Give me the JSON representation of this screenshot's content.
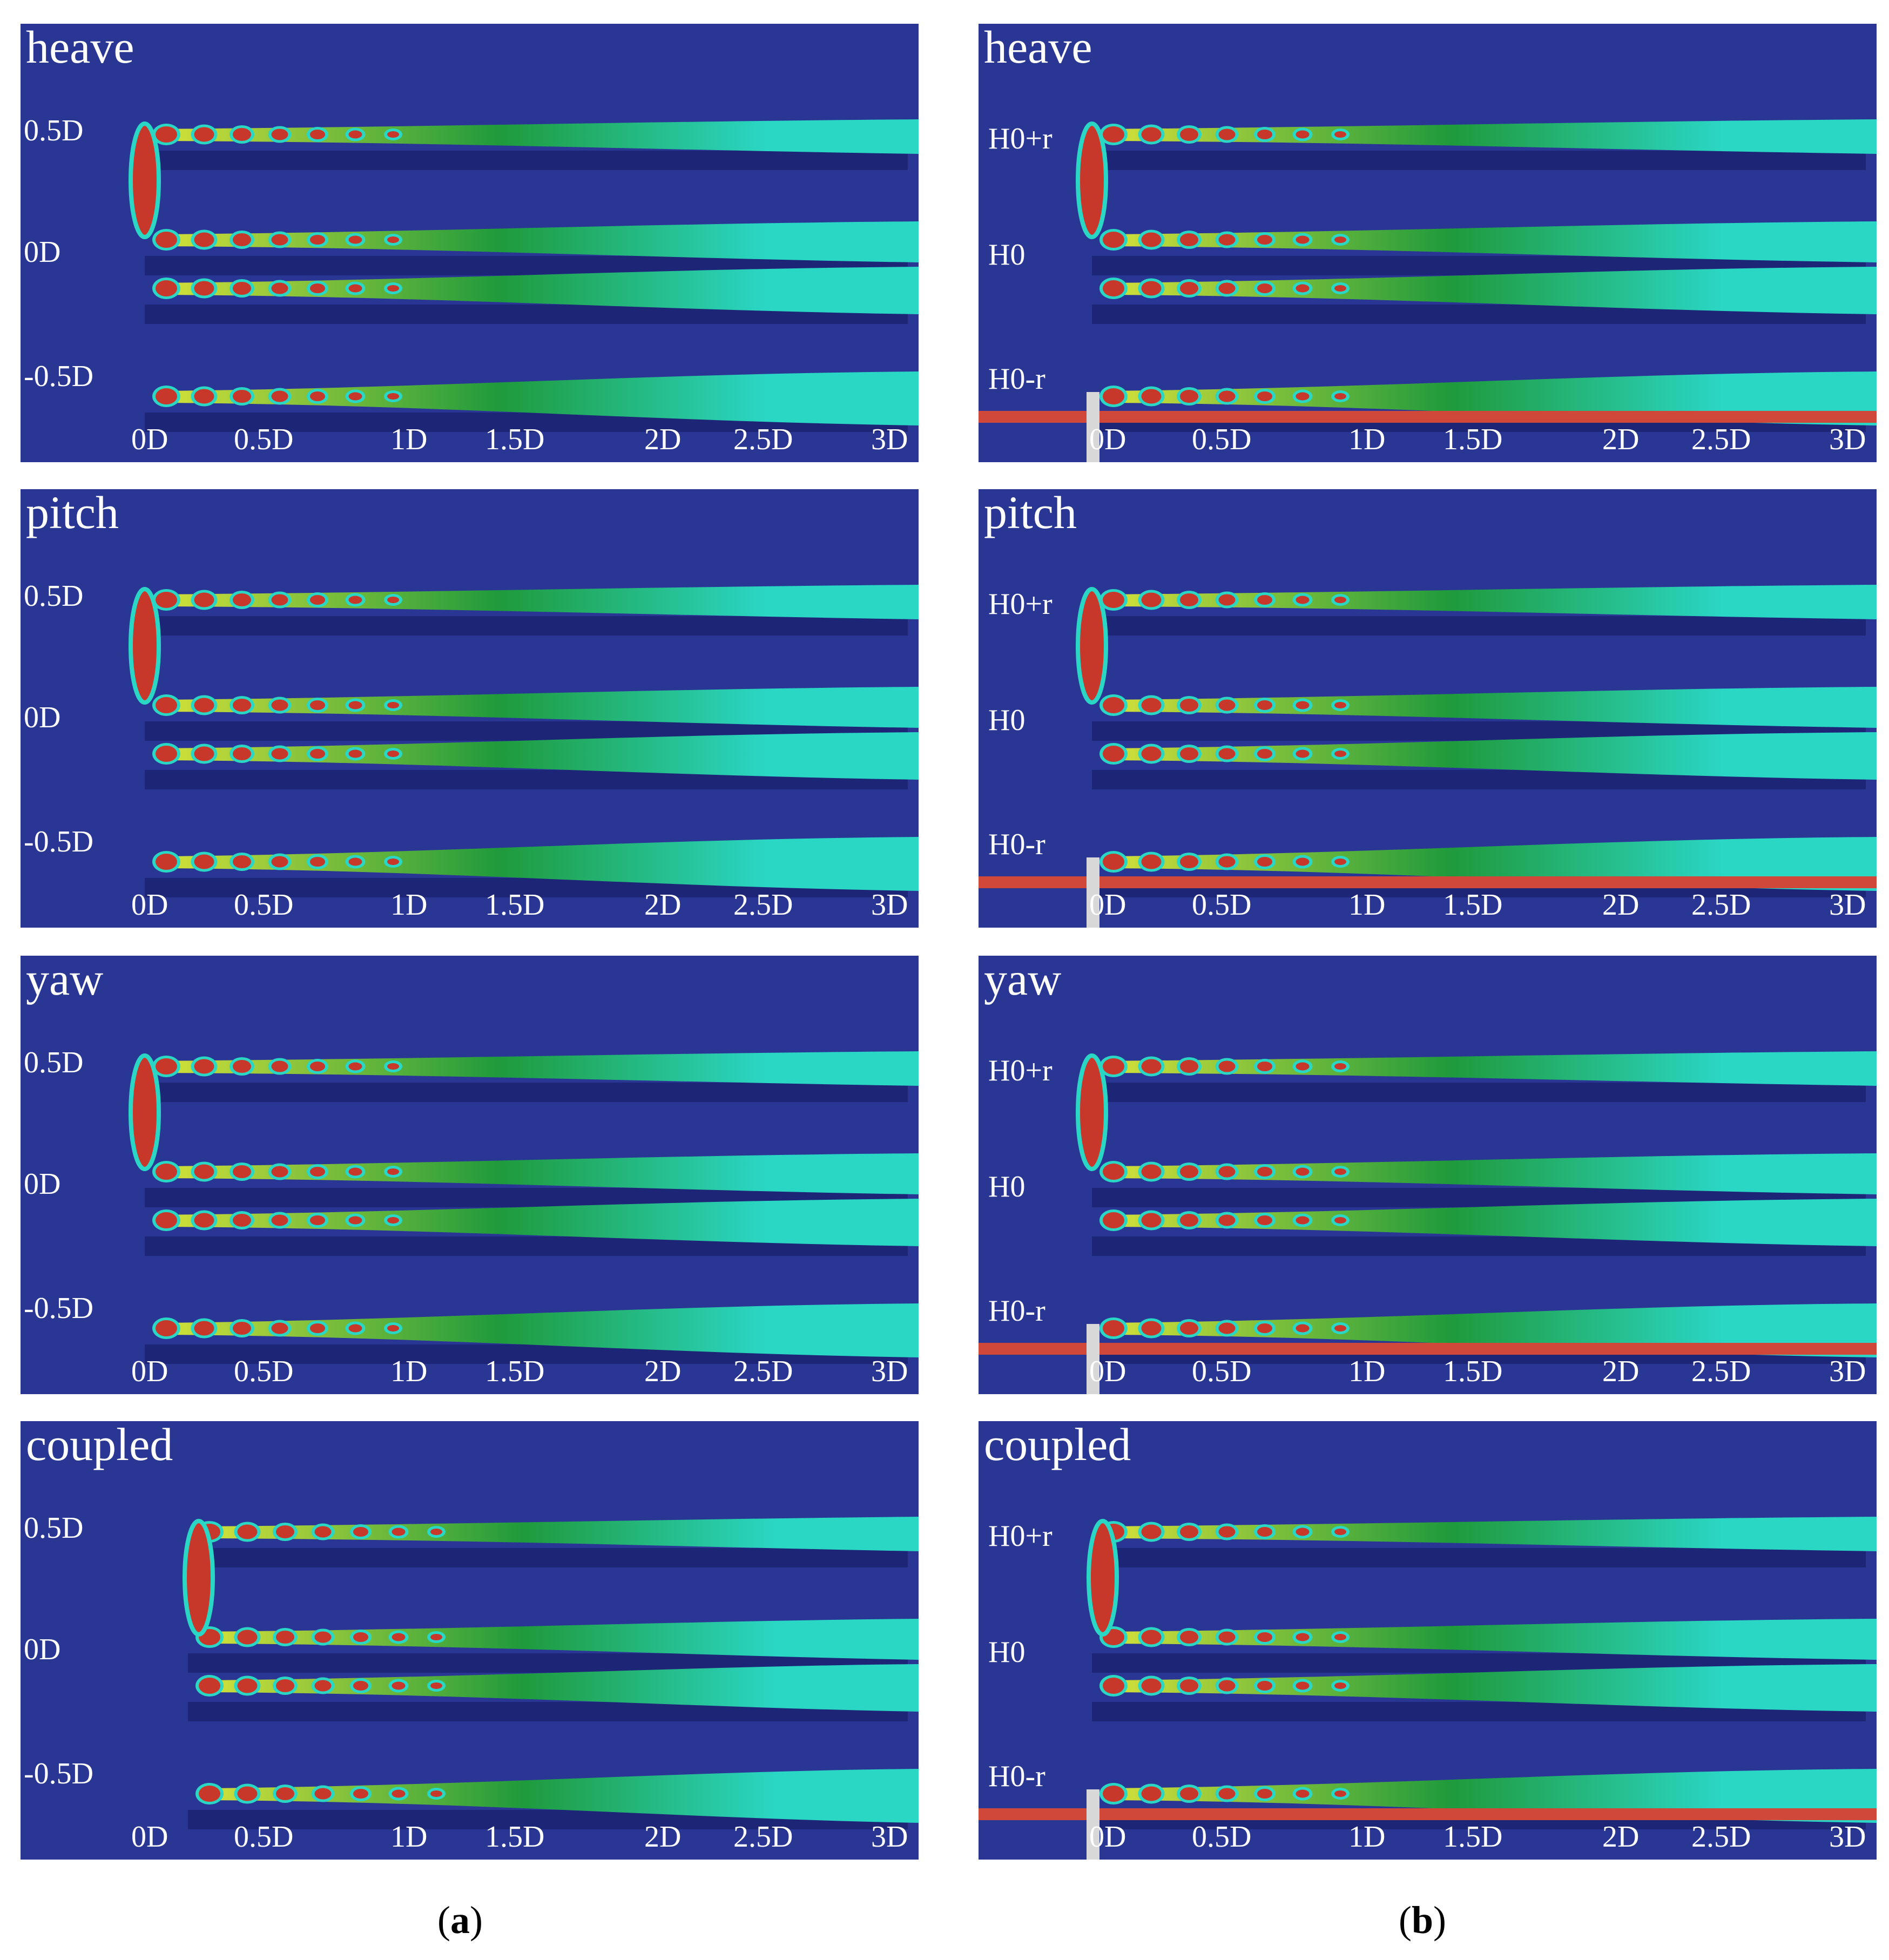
{
  "colors": {
    "background": "#2a3694",
    "deep": "#121a5c",
    "teal": "#2ad6c4",
    "green": "#1f9a3c",
    "yellow": "#d8e23a",
    "red": "#c8382a",
    "ground": "#d0483a"
  },
  "columns": [
    {
      "caption": "a",
      "variant": "free",
      "panels": [
        {
          "title": "heave",
          "y_labels": [
            "0.5D",
            "0D",
            "-0.5D"
          ],
          "x_labels": [
            "0D",
            "0.5D",
            "1D",
            "1.5D",
            "2D",
            "2.5D",
            "3D"
          ]
        },
        {
          "title": "pitch",
          "y_labels": [
            "0.5D",
            "0D",
            "-0.5D"
          ],
          "x_labels": [
            "0D",
            "0.5D",
            "1D",
            "1.5D",
            "2D",
            "2.5D",
            "3D"
          ]
        },
        {
          "title": "yaw",
          "y_labels": [
            "0.5D",
            "0D",
            "-0.5D"
          ],
          "x_labels": [
            "0D",
            "0.5D",
            "1D",
            "1.5D",
            "2D",
            "2.5D",
            "3D"
          ]
        },
        {
          "title": "coupled",
          "y_labels": [
            "0.5D",
            "0D",
            "-0.5D"
          ],
          "x_labels": [
            "0D",
            "0.5D",
            "1D",
            "1.5D",
            "2D",
            "2.5D",
            "3D"
          ]
        }
      ]
    },
    {
      "caption": "b",
      "variant": "ground",
      "panels": [
        {
          "title": "heave",
          "y_labels": [
            "H0+r",
            "H0",
            "H0-r"
          ],
          "x_labels": [
            "0D",
            "0.5D",
            "1D",
            "1.5D",
            "2D",
            "2.5D",
            "3D"
          ]
        },
        {
          "title": "pitch",
          "y_labels": [
            "H0+r",
            "H0",
            "H0-r"
          ],
          "x_labels": [
            "0D",
            "0.5D",
            "1D",
            "1.5D",
            "2D",
            "2.5D",
            "3D"
          ]
        },
        {
          "title": "yaw",
          "y_labels": [
            "H0+r",
            "H0",
            "H0-r"
          ],
          "x_labels": [
            "0D",
            "0.5D",
            "1D",
            "1.5D",
            "2D",
            "2.5D",
            "3D"
          ]
        },
        {
          "title": "coupled",
          "y_labels": [
            "H0+r",
            "H0",
            "H0-r"
          ],
          "x_labels": [
            "0D",
            "0.5D",
            "1D",
            "1.5D",
            "2D",
            "2.5D",
            "3D"
          ]
        }
      ]
    }
  ]
}
